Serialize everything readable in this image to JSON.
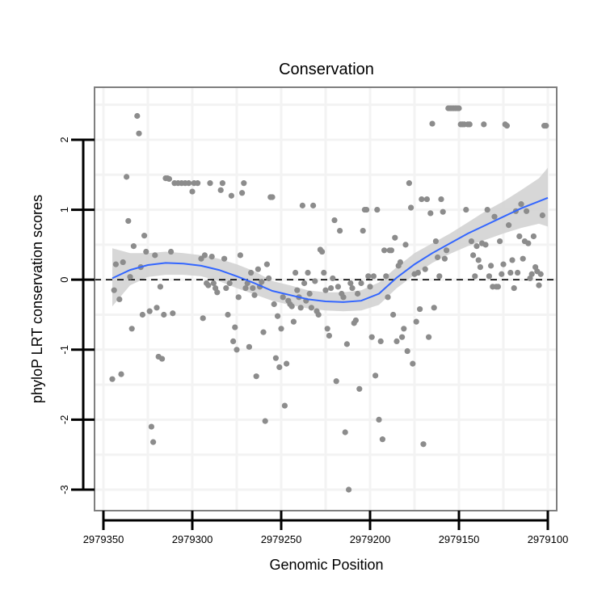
{
  "chart_data": {
    "type": "scatter",
    "title": "Conservation",
    "xlabel": "Genomic Position",
    "ylabel": "phyloP LRT conservation scores",
    "x_reversed": true,
    "xlim": [
      2979355,
      2979095
    ],
    "ylim": [
      -3.3,
      2.75
    ],
    "x_ticks": [
      2979350,
      2979300,
      2979250,
      2979200,
      2979150,
      2979100
    ],
    "x_tick_labels": [
      "2979350",
      "2979300",
      "2979250",
      "2979200",
      "2979150",
      "2979100"
    ],
    "y_ticks": [
      -3,
      -2,
      -1,
      0,
      1,
      2
    ],
    "y_tick_labels": [
      "-3",
      "-2",
      "-1",
      "0",
      "1",
      "2"
    ],
    "reference_line": {
      "y": 0,
      "style": "dashed"
    },
    "colors": {
      "points": "#8c8c8c",
      "smooth_line": "#3366ff",
      "confidence_band": "#d3d3d3",
      "panel_border": "#7f7f7f",
      "grid": "#f3f3f3"
    },
    "series": [
      {
        "name": "points",
        "points": [
          [
            2979345,
            -1.42
          ],
          [
            2979344,
            -0.15
          ],
          [
            2979343,
            0.22
          ],
          [
            2979341,
            -0.28
          ],
          [
            2979340,
            -1.35
          ],
          [
            2979339,
            0.25
          ],
          [
            2979337,
            1.47
          ],
          [
            2979336,
            0.84
          ],
          [
            2979335,
            0.04
          ],
          [
            2979334,
            -0.7
          ],
          [
            2979333,
            0.48
          ],
          [
            2979331,
            2.34
          ],
          [
            2979330,
            2.09
          ],
          [
            2979329,
            0.18
          ],
          [
            2979328,
            -0.5
          ],
          [
            2979327,
            0.63
          ],
          [
            2979326,
            0.4
          ],
          [
            2979324,
            -0.45
          ],
          [
            2979323,
            -2.1
          ],
          [
            2979322,
            -2.32
          ],
          [
            2979321,
            0.35
          ],
          [
            2979320,
            -0.4
          ],
          [
            2979319,
            -1.1
          ],
          [
            2979318,
            -0.1
          ],
          [
            2979317,
            -1.13
          ],
          [
            2979316,
            -0.5
          ],
          [
            2979315,
            1.45
          ],
          [
            2979314,
            1.45
          ],
          [
            2979313,
            1.44
          ],
          [
            2979312,
            0.4
          ],
          [
            2979311,
            -0.48
          ],
          [
            2979310,
            1.38
          ],
          [
            2979308,
            1.38
          ],
          [
            2979306,
            1.38
          ],
          [
            2979304,
            1.38
          ],
          [
            2979302,
            1.38
          ],
          [
            2979300,
            1.26
          ],
          [
            2979299,
            1.38
          ],
          [
            2979297,
            1.38
          ],
          [
            2979295,
            0.3
          ],
          [
            2979294,
            -0.55
          ],
          [
            2979293,
            0.35
          ],
          [
            2979292,
            -0.05
          ],
          [
            2979291,
            -0.08
          ],
          [
            2979290,
            1.38
          ],
          [
            2979289,
            0.33
          ],
          [
            2979288,
            -0.05
          ],
          [
            2979287,
            -0.12
          ],
          [
            2979286,
            -0.18
          ],
          [
            2979284,
            1.28
          ],
          [
            2979283,
            1.38
          ],
          [
            2979282,
            0.3
          ],
          [
            2979281,
            -0.12
          ],
          [
            2979280,
            -0.5
          ],
          [
            2979279,
            -0.05
          ],
          [
            2979278,
            1.2
          ],
          [
            2979277,
            -0.88
          ],
          [
            2979276,
            -0.68
          ],
          [
            2979275,
            -1.0
          ],
          [
            2979274,
            -0.25
          ],
          [
            2979273,
            0.35
          ],
          [
            2979272,
            1.24
          ],
          [
            2979271,
            1.38
          ],
          [
            2979270,
            -0.12
          ],
          [
            2979269,
            -0.05
          ],
          [
            2979268,
            -0.96
          ],
          [
            2979267,
            0.1
          ],
          [
            2979266,
            -0.12
          ],
          [
            2979265,
            -0.22
          ],
          [
            2979264,
            -1.38
          ],
          [
            2979263,
            0.15
          ],
          [
            2979262,
            -0.1
          ],
          [
            2979261,
            -0.03
          ],
          [
            2979260,
            -0.75
          ],
          [
            2979259,
            -2.02
          ],
          [
            2979258,
            0.22
          ],
          [
            2979257,
            0.02
          ],
          [
            2979256,
            1.18
          ],
          [
            2979255,
            1.18
          ],
          [
            2979254,
            -0.35
          ],
          [
            2979253,
            -1.12
          ],
          [
            2979252,
            -0.52
          ],
          [
            2979251,
            -1.25
          ],
          [
            2979250,
            -0.7
          ],
          [
            2979249,
            -0.25
          ],
          [
            2979248,
            -1.8
          ],
          [
            2979247,
            -1.2
          ],
          [
            2979246,
            -0.3
          ],
          [
            2979245,
            -0.35
          ],
          [
            2979244,
            -0.38
          ],
          [
            2979243,
            -0.6
          ],
          [
            2979242,
            0.1
          ],
          [
            2979241,
            -0.15
          ],
          [
            2979240,
            -0.25
          ],
          [
            2979239,
            -0.4
          ],
          [
            2979238,
            1.06
          ],
          [
            2979237,
            -0.05
          ],
          [
            2979236,
            -0.3
          ],
          [
            2979235,
            0.1
          ],
          [
            2979234,
            -0.2
          ],
          [
            2979233,
            -0.4
          ],
          [
            2979232,
            1.06
          ],
          [
            2979231,
            -0.02
          ],
          [
            2979230,
            -0.45
          ],
          [
            2979229,
            -0.5
          ],
          [
            2979228,
            0.43
          ],
          [
            2979227,
            0.4
          ],
          [
            2979226,
            0.1
          ],
          [
            2979225,
            -0.15
          ],
          [
            2979224,
            -0.7
          ],
          [
            2979223,
            -0.8
          ],
          [
            2979222,
            -0.12
          ],
          [
            2979221,
            0.02
          ],
          [
            2979220,
            0.85
          ],
          [
            2979219,
            -1.45
          ],
          [
            2979218,
            -0.1
          ],
          [
            2979217,
            0.7
          ],
          [
            2979216,
            -0.2
          ],
          [
            2979215,
            -0.25
          ],
          [
            2979214,
            -2.18
          ],
          [
            2979213,
            -0.92
          ],
          [
            2979212,
            -3.0
          ],
          [
            2979211,
            -0.05
          ],
          [
            2979210,
            -0.12
          ],
          [
            2979209,
            -0.62
          ],
          [
            2979208,
            -0.58
          ],
          [
            2979207,
            -0.2
          ],
          [
            2979206,
            -1.56
          ],
          [
            2979205,
            -0.05
          ],
          [
            2979204,
            0.7
          ],
          [
            2979203,
            1.0
          ],
          [
            2979202,
            1.0
          ],
          [
            2979201,
            0.05
          ],
          [
            2979200,
            -0.1
          ],
          [
            2979199,
            -0.82
          ],
          [
            2979198,
            0.05
          ],
          [
            2979197,
            -1.37
          ],
          [
            2979196,
            1.0
          ],
          [
            2979195,
            -2.0
          ],
          [
            2979194,
            -0.88
          ],
          [
            2979193,
            -2.28
          ],
          [
            2979192,
            0.42
          ],
          [
            2979191,
            0.05
          ],
          [
            2979190,
            -0.25
          ],
          [
            2979189,
            0.42
          ],
          [
            2979188,
            0.42
          ],
          [
            2979187,
            -0.5
          ],
          [
            2979186,
            0.6
          ],
          [
            2979185,
            -0.88
          ],
          [
            2979184,
            0.2
          ],
          [
            2979183,
            0.25
          ],
          [
            2979182,
            -0.82
          ],
          [
            2979181,
            -0.7
          ],
          [
            2979180,
            0.5
          ],
          [
            2979179,
            -1.02
          ],
          [
            2979178,
            1.38
          ],
          [
            2979177,
            1.03
          ],
          [
            2979176,
            -1.2
          ],
          [
            2979175,
            0.08
          ],
          [
            2979174,
            -0.6
          ],
          [
            2979173,
            0.1
          ],
          [
            2979172,
            -0.42
          ],
          [
            2979171,
            1.15
          ],
          [
            2979170,
            -2.35
          ],
          [
            2979169,
            0.15
          ],
          [
            2979168,
            1.15
          ],
          [
            2979167,
            -0.82
          ],
          [
            2979166,
            0.95
          ],
          [
            2979165,
            2.23
          ],
          [
            2979164,
            -0.4
          ],
          [
            2979163,
            0.55
          ],
          [
            2979162,
            0.32
          ],
          [
            2979161,
            0.05
          ],
          [
            2979160,
            1.15
          ],
          [
            2979159,
            0.97
          ],
          [
            2979158,
            0.3
          ],
          [
            2979157,
            0.42
          ],
          [
            2979156,
            2.45
          ],
          [
            2979155,
            2.45
          ],
          [
            2979154,
            2.45
          ],
          [
            2979153,
            2.45
          ],
          [
            2979152,
            2.45
          ],
          [
            2979151,
            2.45
          ],
          [
            2979150,
            2.45
          ],
          [
            2979149,
            2.22
          ],
          [
            2979148,
            2.22
          ],
          [
            2979147,
            2.22
          ],
          [
            2979146,
            1.0
          ],
          [
            2979145,
            2.22
          ],
          [
            2979144,
            2.22
          ],
          [
            2979143,
            0.55
          ],
          [
            2979142,
            0.35
          ],
          [
            2979141,
            0.05
          ],
          [
            2979140,
            0.48
          ],
          [
            2979139,
            0.28
          ],
          [
            2979138,
            0.18
          ],
          [
            2979137,
            0.52
          ],
          [
            2979136,
            2.22
          ],
          [
            2979135,
            0.5
          ],
          [
            2979134,
            1.0
          ],
          [
            2979133,
            0.05
          ],
          [
            2979132,
            0.2
          ],
          [
            2979131,
            -0.1
          ],
          [
            2979130,
            0.9
          ],
          [
            2979129,
            -0.1
          ],
          [
            2979128,
            -0.1
          ],
          [
            2979127,
            0.55
          ],
          [
            2979126,
            0.08
          ],
          [
            2979125,
            0.22
          ],
          [
            2979124,
            2.22
          ],
          [
            2979123,
            2.2
          ],
          [
            2979122,
            0.78
          ],
          [
            2979121,
            0.1
          ],
          [
            2979120,
            0.28
          ],
          [
            2979119,
            -0.12
          ],
          [
            2979118,
            0.98
          ],
          [
            2979117,
            0.1
          ],
          [
            2979116,
            0.62
          ],
          [
            2979115,
            1.08
          ],
          [
            2979114,
            0.3
          ],
          [
            2979113,
            0.55
          ],
          [
            2979112,
            0.98
          ],
          [
            2979111,
            0.52
          ],
          [
            2979110,
            0.02
          ],
          [
            2979109,
            0.08
          ],
          [
            2979108,
            0.62
          ],
          [
            2979107,
            0.18
          ],
          [
            2979106,
            0.12
          ],
          [
            2979105,
            -0.08
          ],
          [
            2979104,
            0.08
          ],
          [
            2979103,
            0.92
          ],
          [
            2979102,
            2.2
          ],
          [
            2979101,
            2.2
          ]
        ]
      },
      {
        "name": "smooth",
        "x": [
          2979345,
          2979335,
          2979325,
          2979315,
          2979305,
          2979295,
          2979285,
          2979275,
          2979265,
          2979255,
          2979245,
          2979235,
          2979225,
          2979215,
          2979205,
          2979195,
          2979185,
          2979175,
          2979165,
          2979155,
          2979145,
          2979135,
          2979125,
          2979115,
          2979105,
          2979100
        ],
        "y": [
          0.02,
          0.14,
          0.21,
          0.24,
          0.23,
          0.2,
          0.14,
          0.05,
          -0.05,
          -0.16,
          -0.22,
          -0.28,
          -0.31,
          -0.32,
          -0.3,
          -0.2,
          0.03,
          0.22,
          0.38,
          0.52,
          0.66,
          0.78,
          0.9,
          1.02,
          1.12,
          1.17
        ],
        "lower": [
          -0.38,
          -0.08,
          0.04,
          0.07,
          0.07,
          0.05,
          -0.02,
          -0.12,
          -0.21,
          -0.3,
          -0.36,
          -0.41,
          -0.44,
          -0.45,
          -0.44,
          -0.36,
          -0.12,
          0.07,
          0.24,
          0.37,
          0.48,
          0.57,
          0.66,
          0.74,
          0.8,
          0.76
        ],
        "upper": [
          0.45,
          0.38,
          0.38,
          0.4,
          0.38,
          0.35,
          0.3,
          0.22,
          0.12,
          -0.02,
          -0.08,
          -0.15,
          -0.18,
          -0.18,
          -0.15,
          -0.04,
          0.18,
          0.38,
          0.52,
          0.66,
          0.82,
          0.98,
          1.12,
          1.28,
          1.45,
          1.6
        ]
      }
    ]
  }
}
